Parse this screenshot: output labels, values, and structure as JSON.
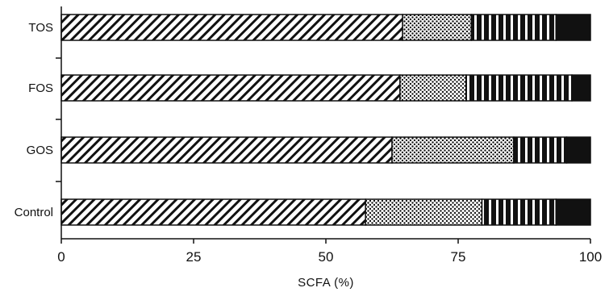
{
  "chart_data": {
    "type": "bar",
    "orientation": "horizontal",
    "stacked": true,
    "title": "",
    "xlabel": "SCFA (%)",
    "ylabel": "",
    "xlim": [
      0,
      100
    ],
    "x_ticks": [
      0,
      25,
      50,
      75,
      100
    ],
    "x_tick_labels": [
      "0",
      "25",
      "50",
      "75",
      "100"
    ],
    "categories": [
      "Control",
      "GOS",
      "FOS",
      "TOS"
    ],
    "series": [
      {
        "pattern": "diagonal-hatch",
        "values": [
          57.5,
          62.5,
          64,
          64.5
        ]
      },
      {
        "pattern": "dotted",
        "values": [
          22,
          23,
          12.5,
          13
        ]
      },
      {
        "pattern": "vertical-lines",
        "values": [
          14,
          10,
          20,
          16
        ]
      },
      {
        "pattern": "solid-black",
        "values": [
          6.5,
          4.5,
          3.5,
          6.5
        ]
      }
    ],
    "grid": false,
    "legend": "none"
  }
}
